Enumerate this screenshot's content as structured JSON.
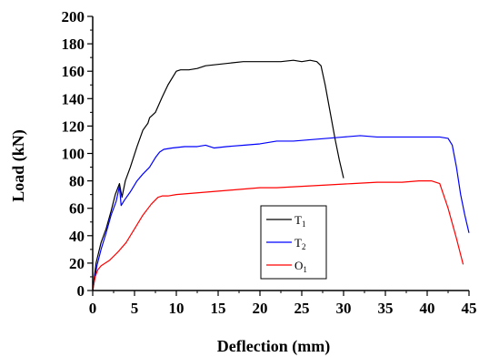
{
  "chart_data": {
    "type": "line",
    "title": "",
    "xlabel": "Deflection (mm)",
    "ylabel": "Load (kN)",
    "xlim": [
      0,
      45
    ],
    "ylim": [
      0,
      200
    ],
    "x_ticks": [
      0,
      5,
      10,
      15,
      20,
      25,
      30,
      35,
      40,
      45
    ],
    "y_ticks": [
      0,
      20,
      40,
      60,
      80,
      100,
      120,
      140,
      160,
      180,
      200
    ],
    "grid": false,
    "legend_position": "bottom-center",
    "series": [
      {
        "name": "T1",
        "label_base": "T",
        "label_sub": "1",
        "color": "#000000",
        "x": [
          0,
          0.4,
          1,
          1.6,
          2.2,
          2.7,
          3.2,
          3.5,
          3.9,
          4.5,
          5.3,
          6.0,
          6.6,
          6.8,
          7.5,
          8.3,
          9.0,
          9.6,
          10.0,
          10.5,
          11.5,
          12.5,
          13.5,
          15.0,
          16.5,
          18.0,
          19.5,
          21.0,
          22.5,
          24.0,
          25.0,
          26.0,
          26.8,
          27.3,
          27.8,
          28.4,
          29.0,
          29.5,
          30.0
        ],
        "y": [
          0,
          20,
          35,
          45,
          58,
          70,
          78,
          68,
          80,
          90,
          105,
          117,
          122,
          126,
          130,
          141,
          150,
          156,
          160,
          161,
          161,
          162,
          164,
          165,
          166,
          167,
          167,
          167,
          167,
          168,
          167,
          168,
          167,
          164,
          150,
          130,
          110,
          95,
          82
        ]
      },
      {
        "name": "T2",
        "label_base": "T",
        "label_sub": "2",
        "color": "#0000ff",
        "x": [
          0,
          0.5,
          1,
          1.6,
          2.2,
          2.8,
          3.2,
          3.4,
          3.8,
          4.5,
          5.3,
          6.0,
          6.8,
          7.5,
          8.0,
          8.5,
          9.5,
          11.0,
          12.5,
          13.5,
          14.5,
          16.0,
          18.0,
          20.0,
          22.0,
          24.0,
          26.0,
          28.0,
          30.0,
          32.0,
          34.0,
          36.0,
          38.0,
          40.0,
          41.5,
          42.5,
          43.0,
          43.5,
          44.0,
          44.5,
          45.0
        ],
        "y": [
          0,
          18,
          30,
          42,
          55,
          65,
          76,
          62,
          66,
          72,
          80,
          85,
          90,
          97,
          101,
          103,
          104,
          105,
          105,
          106,
          104,
          105,
          106,
          107,
          109,
          109,
          110,
          111,
          112,
          113,
          112,
          112,
          112,
          112,
          112,
          111,
          106,
          90,
          70,
          55,
          42
        ]
      },
      {
        "name": "O1",
        "label_base": "O",
        "label_sub": "1",
        "color": "#ff0000",
        "x": [
          0,
          0.3,
          0.6,
          1.0,
          2.0,
          3.0,
          4.0,
          5.0,
          6.0,
          7.0,
          7.8,
          8.3,
          9.0,
          10.0,
          12.0,
          14.0,
          16.0,
          18.0,
          20.0,
          22.0,
          25.0,
          28.0,
          31.0,
          34.0,
          37.0,
          39.0,
          40.5,
          41.5,
          42.5,
          43.5,
          44.3
        ],
        "y": [
          0,
          10,
          15,
          18,
          22,
          28,
          35,
          45,
          55,
          63,
          68,
          69,
          69,
          70,
          71,
          72,
          73,
          74,
          75,
          75,
          76,
          77,
          78,
          79,
          79,
          80,
          80,
          78,
          60,
          38,
          19
        ]
      }
    ]
  }
}
